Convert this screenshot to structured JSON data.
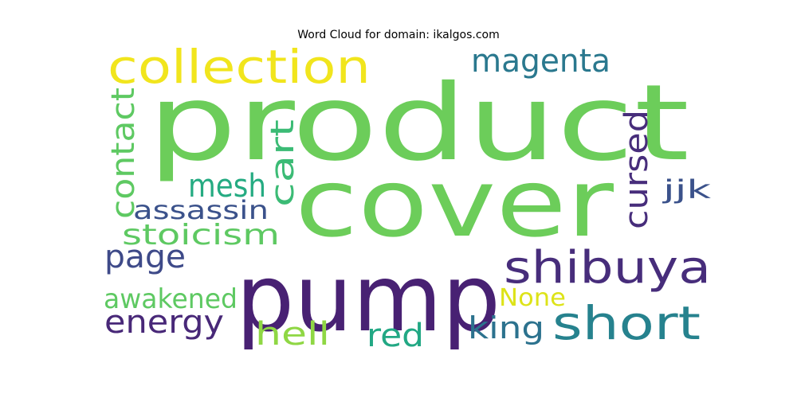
{
  "chart_data": {
    "type": "wordcloud",
    "title": "Word Cloud for domain: ikalgos.com",
    "background": "#ffffff",
    "words": [
      {
        "text": "product",
        "color": "#6CCD5A"
      },
      {
        "text": "cover",
        "color": "#6CCD5A"
      },
      {
        "text": "pump",
        "color": "#482173"
      },
      {
        "text": "collection",
        "color": "#F1E51D"
      },
      {
        "text": "magenta",
        "color": "#2A788E"
      },
      {
        "text": "contact",
        "color": "#5EC962"
      },
      {
        "text": "cart",
        "color": "#3BBB75"
      },
      {
        "text": "mesh",
        "color": "#25AB82"
      },
      {
        "text": "cursed",
        "color": "#472D7B"
      },
      {
        "text": "jjk",
        "color": "#3B528B"
      },
      {
        "text": "assassin",
        "color": "#3B528B"
      },
      {
        "text": "stoicism",
        "color": "#5EC962"
      },
      {
        "text": "page",
        "color": "#3E4A89"
      },
      {
        "text": "shibuya",
        "color": "#472D7B"
      },
      {
        "text": "awakened",
        "color": "#5EC962"
      },
      {
        "text": "None",
        "color": "#DDE318"
      },
      {
        "text": "energy",
        "color": "#482878"
      },
      {
        "text": "short",
        "color": "#26828E"
      },
      {
        "text": "king",
        "color": "#2C728E"
      },
      {
        "text": "hell",
        "color": "#8FD744"
      },
      {
        "text": "red",
        "color": "#22A884"
      }
    ]
  }
}
